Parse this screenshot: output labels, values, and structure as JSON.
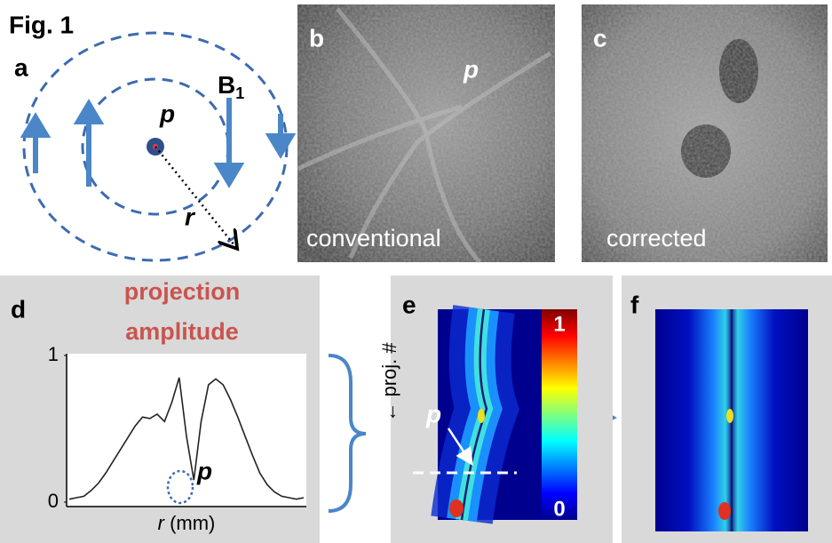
{
  "figure_label": "Fig. 1",
  "panels": {
    "a": {
      "label": "a",
      "point_label": "p",
      "field_label": {
        "base": "B",
        "subscript": "1"
      },
      "radius_label": "r"
    },
    "b": {
      "label": "b",
      "point_label": "p",
      "caption": "conventional"
    },
    "c": {
      "label": "c",
      "caption": "corrected"
    },
    "d": {
      "label": "d",
      "title": [
        "projection",
        "amplitude"
      ],
      "point_label": "p",
      "x_label": {
        "var": "r",
        "unit": "(mm)"
      },
      "chart_data": {
        "type": "line",
        "values": [
          0.02,
          0.03,
          0.04,
          0.08,
          0.13,
          0.2,
          0.28,
          0.36,
          0.44,
          0.52,
          0.58,
          0.57,
          0.6,
          0.55,
          0.68,
          0.85,
          0.45,
          0.15,
          0.55,
          0.8,
          0.84,
          0.8,
          0.7,
          0.58,
          0.45,
          0.32,
          0.2,
          0.12,
          0.07,
          0.04,
          0.03,
          0.02,
          0.03
        ],
        "ylim": [
          0,
          1
        ],
        "yticks": [
          0,
          1
        ]
      }
    },
    "e": {
      "label": "e",
      "y_label": "← proj. #",
      "point_label": "p",
      "colorbar": {
        "ylim": [
          0,
          1
        ],
        "yticks": [
          0,
          1
        ]
      }
    },
    "f": {
      "label": "f"
    }
  }
}
